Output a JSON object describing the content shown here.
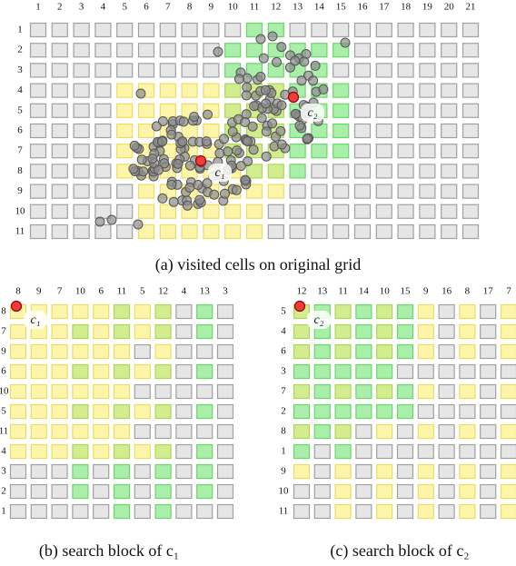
{
  "grid_a": {
    "columns": [
      1,
      2,
      3,
      4,
      5,
      6,
      7,
      8,
      9,
      10,
      11,
      12,
      13,
      14,
      15,
      16,
      17,
      18,
      19,
      20,
      21
    ],
    "rows": [
      1,
      2,
      3,
      4,
      5,
      6,
      7,
      8,
      9,
      10,
      11
    ],
    "caption": "(a) visited cells on original grid",
    "labels": [
      "c₁",
      "c₂"
    ]
  },
  "block_b": {
    "columns": [
      8,
      9,
      7,
      10,
      6,
      11,
      5,
      12,
      4,
      13,
      3
    ],
    "rows": [
      8,
      7,
      9,
      6,
      10,
      5,
      11,
      4,
      3,
      2,
      1
    ],
    "label": "c₁",
    "caption": "(b) search block of c₁"
  },
  "block_c": {
    "columns": [
      12,
      13,
      11,
      14,
      10,
      15,
      9,
      16,
      8,
      17,
      7
    ],
    "rows": [
      5,
      4,
      6,
      3,
      7,
      2,
      8,
      1,
      9,
      10,
      11
    ],
    "label": "c₂",
    "caption": "(c) search block of c₂"
  }
}
